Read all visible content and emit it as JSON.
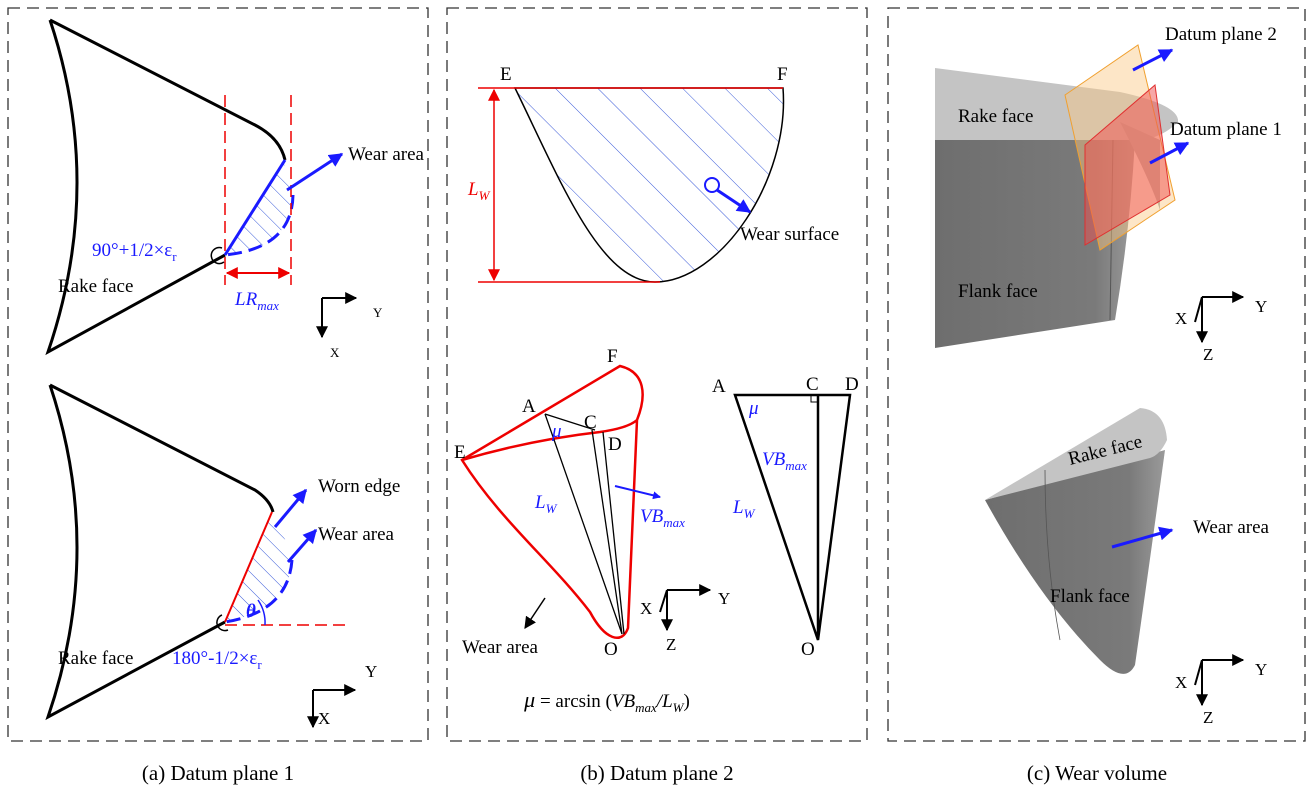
{
  "panel_a": {
    "caption": "(a) Datum plane 1",
    "top": {
      "wear_area": "Wear area",
      "angle": {
        "text": "90°+1/2×ε",
        "sub": "r"
      },
      "width": {
        "text": "LR",
        "sub": "max"
      },
      "rake_face": "Rake face",
      "axis_y": "Y",
      "axis_x": "X"
    },
    "bottom": {
      "worn_edge": "Worn edge",
      "wear_area": "Wear area",
      "theta": "θ",
      "angle": {
        "text": "180°-1/2×ε",
        "sub": "r"
      },
      "rake_face": "Rake face",
      "axis_y": "Y",
      "axis_x": "X"
    }
  },
  "panel_b": {
    "caption": "(b) Datum plane 2",
    "top": {
      "point_e": "E",
      "point_f": "F",
      "length": {
        "text": "L",
        "sub": "W"
      },
      "wear_surface": "Wear surface"
    },
    "perspective": {
      "point_f": "F",
      "point_a": "A",
      "point_c": "C",
      "point_d": "D",
      "point_e": "E",
      "point_o": "O",
      "mu": "μ",
      "length": {
        "text": "L",
        "sub": "W"
      },
      "depth": {
        "text": "VB",
        "sub": "max"
      },
      "wear_area": "Wear area",
      "axis_x": "X",
      "axis_y": "Y",
      "axis_z": "Z"
    },
    "triangle": {
      "point_a": "A",
      "point_c": "C",
      "point_d": "D",
      "point_o": "O",
      "mu": "μ",
      "depth": {
        "text": "VB",
        "sub": "max"
      },
      "length": {
        "text": "L",
        "sub": "W"
      }
    },
    "formula": {
      "lhs": "μ",
      "eq": " = arcsin (",
      "vb": "VB",
      "vb_sub": "max",
      "slash": "/",
      "l": "L",
      "l_sub": "W",
      "close": ")"
    }
  },
  "panel_c": {
    "caption": "(c) Wear volume",
    "top": {
      "datum_plane_2": "Datum plane 2",
      "datum_plane_1": "Datum plane 1",
      "rake_face": "Rake face",
      "flank_face": "Flank face",
      "axis_x": "X",
      "axis_y": "Y",
      "axis_z": "Z"
    },
    "bottom": {
      "rake_face": "Rake face",
      "wear_area": "Wear area",
      "flank_face": "Flank face",
      "axis_x": "X",
      "axis_y": "Y",
      "axis_z": "Z"
    }
  }
}
